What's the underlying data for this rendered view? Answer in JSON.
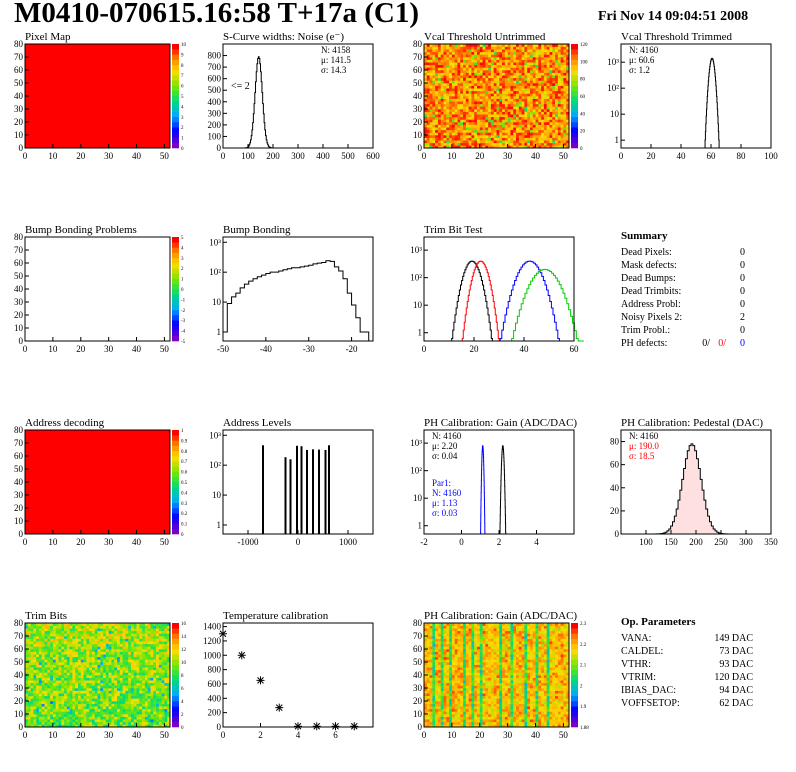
{
  "header": {
    "title": "M0410-070615.16:58 T+17a (C1)",
    "date": "Fri Nov 14 09:04:51 2008"
  },
  "colors": {
    "frame": "#000000",
    "red": "#ff0000",
    "blue": "#0000ff",
    "green": "#00cc00"
  },
  "chart_data": [
    {
      "id": "p0",
      "type": "heatmap",
      "title": "Pixel Map",
      "xlim": [
        0,
        52
      ],
      "ylim": [
        0,
        80
      ],
      "xticks": [
        "0",
        "10",
        "20",
        "30",
        "40",
        "50"
      ],
      "yticks": [
        "0",
        "10",
        "20",
        "30",
        "40",
        "50",
        "60",
        "70",
        "80"
      ],
      "zlim": [
        0,
        10
      ],
      "palette_ticks": [
        "0",
        "1",
        "2",
        "3",
        "4",
        "5",
        "6",
        "7",
        "8",
        "9",
        "10"
      ],
      "fill": "uniform-max"
    },
    {
      "id": "p1",
      "type": "histogram",
      "title": "S-Curve widths: Noise (e⁻)",
      "xlim": [
        0,
        600
      ],
      "ylim": [
        0,
        900
      ],
      "xticks": [
        "0",
        "100",
        "200",
        "300",
        "400",
        "500",
        "600"
      ],
      "yticks": [
        "0",
        "100",
        "200",
        "300",
        "400",
        "500",
        "600",
        "700",
        "800"
      ],
      "stats": [
        "N: 4158",
        "μ: 141.5",
        "σ: 14.3"
      ],
      "annotation": "<= 2",
      "series": [
        {
          "color": "black",
          "peak": {
            "mu": 141.5,
            "sigma": 14.3,
            "height": 790
          }
        }
      ]
    },
    {
      "id": "p2",
      "type": "heatmap",
      "title": "Vcal Threshold Untrimmed",
      "xlim": [
        0,
        52
      ],
      "ylim": [
        0,
        80
      ],
      "xticks": [
        "0",
        "10",
        "20",
        "30",
        "40",
        "50"
      ],
      "yticks": [
        "0",
        "10",
        "20",
        "30",
        "40",
        "50",
        "60",
        "70",
        "80"
      ],
      "palette_ticks": [
        "0",
        "20",
        "40",
        "60",
        "80",
        "100",
        "120"
      ],
      "fill": "noisy-orange"
    },
    {
      "id": "p3",
      "type": "histogram",
      "title": "Vcal Threshold Trimmed",
      "xlim": [
        0,
        100
      ],
      "ylog": true,
      "ylim": [
        0.5,
        5000
      ],
      "xticks": [
        "0",
        "20",
        "40",
        "60",
        "80",
        "100"
      ],
      "yticks": [
        "1",
        "10",
        "10²",
        "10³"
      ],
      "stats": [
        "N: 4160",
        "μ: 60.6",
        "σ: 1.2"
      ],
      "series": [
        {
          "color": "black",
          "peak": {
            "mu": 60.6,
            "sigma": 1.2,
            "height": 1400
          }
        }
      ]
    },
    {
      "id": "p4",
      "type": "heatmap",
      "title": "Bump Bonding Problems",
      "xlim": [
        0,
        52
      ],
      "ylim": [
        0,
        80
      ],
      "xticks": [
        "0",
        "10",
        "20",
        "30",
        "40",
        "50"
      ],
      "yticks": [
        "0",
        "10",
        "20",
        "30",
        "40",
        "50",
        "60",
        "70",
        "80"
      ],
      "palette_ticks": [
        "-5",
        "-4",
        "-3",
        "-2",
        "-1",
        "0",
        "1",
        "2",
        "3",
        "4",
        "5"
      ],
      "fill": "empty"
    },
    {
      "id": "p5",
      "type": "histogram",
      "title": "Bump Bonding",
      "xlim": [
        -50,
        -15
      ],
      "ylog": true,
      "ylim": [
        0.5,
        1500
      ],
      "xticks": [
        "-50",
        "-40",
        "-30",
        "-20"
      ],
      "yticks": [
        "1",
        "10",
        "10²",
        "10³"
      ],
      "series": [
        {
          "color": "black",
          "bins": {
            "start": -50,
            "width": 1,
            "counts": [
              1,
              9,
              15,
              20,
              30,
              40,
              50,
              60,
              70,
              80,
              90,
              100,
              100,
              110,
              120,
              130,
              140,
              140,
              150,
              160,
              170,
              190,
              200,
              210,
              240,
              230,
              150,
              110,
              60,
              20,
              8,
              3,
              1,
              1,
              0
            ]
          }
        }
      ]
    },
    {
      "id": "p6",
      "type": "histogram",
      "title": "Trim Bit Test",
      "xlim": [
        0,
        60
      ],
      "ylog": true,
      "ylim": [
        0.5,
        3000
      ],
      "xticks": [
        "0",
        "20",
        "40",
        "60"
      ],
      "yticks": [
        "1",
        "10",
        "10²",
        "10³"
      ],
      "series": [
        {
          "color": "black",
          "peak": {
            "mu": 19,
            "sigma": 2.2,
            "height": 400
          }
        },
        {
          "color": "red",
          "peak": {
            "mu": 22.5,
            "sigma": 2.0,
            "height": 400
          }
        },
        {
          "color": "blue",
          "peak": {
            "mu": 42,
            "sigma": 3.2,
            "height": 400
          }
        },
        {
          "color": "green",
          "peak": {
            "mu": 48,
            "sigma": 3.8,
            "height": 200
          }
        }
      ]
    },
    {
      "id": "p7",
      "type": "table",
      "title": "Summary",
      "rows": [
        {
          "label": "Dead Pixels:",
          "value": "0"
        },
        {
          "label": "Mask defects:",
          "value": "0"
        },
        {
          "label": "Dead Bumps:",
          "value": "0"
        },
        {
          "label": "Dead Trimbits:",
          "value": "0"
        },
        {
          "label": "Address Probl:",
          "value": "0"
        },
        {
          "label": "Noisy Pixels 2:",
          "value": "2"
        },
        {
          "label": "Trim Probl.:",
          "value": "0"
        }
      ],
      "ph_defects": {
        "label": "PH defects:",
        "values": [
          "0/",
          "0/",
          "0"
        ]
      }
    },
    {
      "id": "p8",
      "type": "heatmap",
      "title": "Address decoding",
      "xlim": [
        0,
        52
      ],
      "ylim": [
        0,
        80
      ],
      "xticks": [
        "0",
        "10",
        "20",
        "30",
        "40",
        "50"
      ],
      "yticks": [
        "0",
        "10",
        "20",
        "30",
        "40",
        "50",
        "60",
        "70",
        "80"
      ],
      "palette_ticks": [
        "0",
        "0.1",
        "0.2",
        "0.3",
        "0.4",
        "0.5",
        "0.6",
        "0.7",
        "0.8",
        "0.9",
        "1"
      ],
      "fill": "uniform-max"
    },
    {
      "id": "p9",
      "type": "histogram",
      "title": "Address Levels",
      "xlim": [
        -1500,
        1500
      ],
      "ylog": true,
      "ylim": [
        0.5,
        1500
      ],
      "xticks": [
        "-1000",
        "0",
        "1000"
      ],
      "yticks": [
        "1",
        "10",
        "10²",
        "10³"
      ],
      "series": [
        {
          "color": "black",
          "spikes": [
            -700,
            -250,
            -150,
            -20,
            70,
            180,
            300,
            420,
            550,
            620
          ]
        }
      ]
    },
    {
      "id": "p10",
      "type": "histogram",
      "title": "PH Calibration: Gain (ADC/DAC)",
      "xlim": [
        -2,
        6
      ],
      "ylog": true,
      "ylim": [
        0.5,
        3000
      ],
      "xticks": [
        "-2",
        "0",
        "2",
        "4"
      ],
      "yticks": [
        "1",
        "10",
        "10²",
        "10³"
      ],
      "stats": [
        "N: 4160",
        "μ: 2.20",
        "σ: 0.04"
      ],
      "stats2": [
        "Par1:",
        "N: 4160",
        "μ: 1.13",
        "σ: 0.03"
      ],
      "series": [
        {
          "color": "black",
          "peak": {
            "mu": 2.2,
            "sigma": 0.04,
            "height": 800
          }
        },
        {
          "color": "blue",
          "peak": {
            "mu": 1.13,
            "sigma": 0.03,
            "height": 800
          }
        }
      ]
    },
    {
      "id": "p11",
      "type": "histogram",
      "title": "PH Calibration: Pedestal (DAC)",
      "xlim": [
        50,
        350
      ],
      "ylim": [
        0,
        90
      ],
      "xticks": [
        "100",
        "150",
        "200",
        "250",
        "300",
        "350"
      ],
      "yticks": [
        "0",
        "20",
        "40",
        "60",
        "80"
      ],
      "stats": [
        "N: 4160",
        "μ: 190.0",
        "σ: 18.5"
      ],
      "series": [
        {
          "color": "black",
          "peak": {
            "mu": 190,
            "sigma": 18.5,
            "height": 78
          }
        }
      ]
    },
    {
      "id": "p12",
      "type": "heatmap",
      "title": "Trim Bits",
      "xlim": [
        0,
        52
      ],
      "ylim": [
        0,
        80
      ],
      "xticks": [
        "0",
        "10",
        "20",
        "30",
        "40",
        "50"
      ],
      "yticks": [
        "0",
        "10",
        "20",
        "30",
        "40",
        "50",
        "60",
        "70",
        "80"
      ],
      "palette_ticks": [
        "0",
        "2",
        "4",
        "6",
        "8",
        "10",
        "12",
        "14",
        "16"
      ],
      "fill": "noisy-green"
    },
    {
      "id": "p13",
      "type": "scatter",
      "title": "Temperature calibration",
      "xlim": [
        0,
        8
      ],
      "ylim": [
        0,
        1450
      ],
      "xticks": [
        "0",
        "2",
        "4",
        "6"
      ],
      "yticks": [
        "0",
        "200",
        "400",
        "600",
        "800",
        "1000",
        "1200",
        "1400"
      ],
      "points": [
        [
          0,
          1300
        ],
        [
          1,
          1000
        ],
        [
          2,
          650
        ],
        [
          3,
          270
        ],
        [
          4,
          10
        ],
        [
          5,
          10
        ],
        [
          6,
          10
        ],
        [
          7,
          10
        ]
      ]
    },
    {
      "id": "p14",
      "type": "heatmap",
      "title": "PH Calibration: Gain (ADC/DAC)",
      "xlim": [
        0,
        52
      ],
      "ylim": [
        0,
        80
      ],
      "xticks": [
        "0",
        "10",
        "20",
        "30",
        "40",
        "50"
      ],
      "yticks": [
        "0",
        "10",
        "20",
        "30",
        "40",
        "50",
        "60",
        "70",
        "80"
      ],
      "palette_ticks": [
        "1.88",
        "1.9",
        "2",
        "2.1",
        "2.2",
        "2.3"
      ],
      "fill": "striped"
    },
    {
      "id": "p15",
      "type": "table",
      "title": "Op. Parameters",
      "rows": [
        {
          "label": "VANA:",
          "value": "149 DAC"
        },
        {
          "label": "CALDEL:",
          "value": "73 DAC"
        },
        {
          "label": "VTHR:",
          "value": "93 DAC"
        },
        {
          "label": "VTRIM:",
          "value": "120 DAC"
        },
        {
          "label": "IBIAS_DAC:",
          "value": "94 DAC"
        },
        {
          "label": "VOFFSETOP:",
          "value": "62 DAC"
        }
      ]
    }
  ]
}
